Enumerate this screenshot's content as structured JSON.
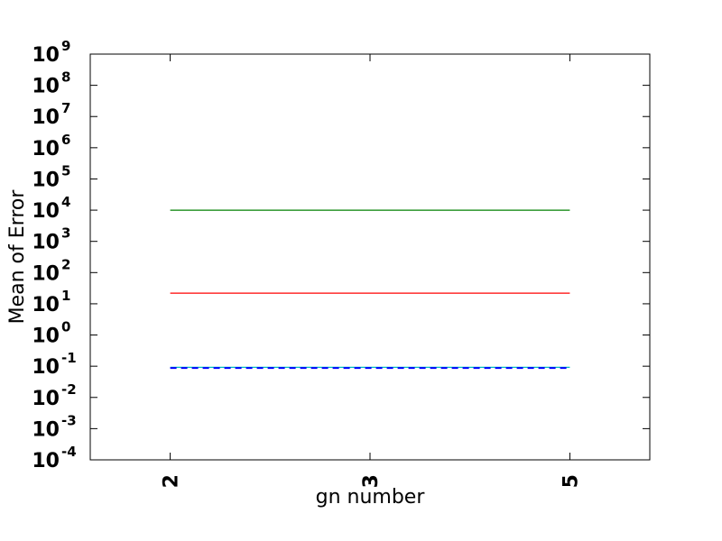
{
  "chart_data": {
    "type": "line",
    "xlabel": "gn number",
    "ylabel": "Mean of Error",
    "x_ticks": [
      "2",
      "3",
      "5"
    ],
    "y_scale": "log",
    "ylim": [
      0.0001,
      1000000000
    ],
    "y_tick_base": "10",
    "y_tick_exponents": [
      "-4",
      "-3",
      "-2",
      "-1",
      "0",
      "1",
      "2",
      "3",
      "4",
      "5",
      "6",
      "7",
      "8",
      "9"
    ],
    "grid": false,
    "series": [
      {
        "color": "#008000",
        "style": "solid",
        "values": [
          10000,
          10000,
          10000
        ]
      },
      {
        "color": "#ff0000",
        "style": "solid",
        "values": [
          22,
          22,
          22
        ]
      },
      {
        "color": "#00bfbf",
        "style": "solid",
        "values": [
          0.092,
          0.092,
          0.092
        ]
      },
      {
        "color": "#0000ff",
        "style": "dashed",
        "values": [
          0.088,
          0.088,
          0.088
        ]
      }
    ]
  }
}
